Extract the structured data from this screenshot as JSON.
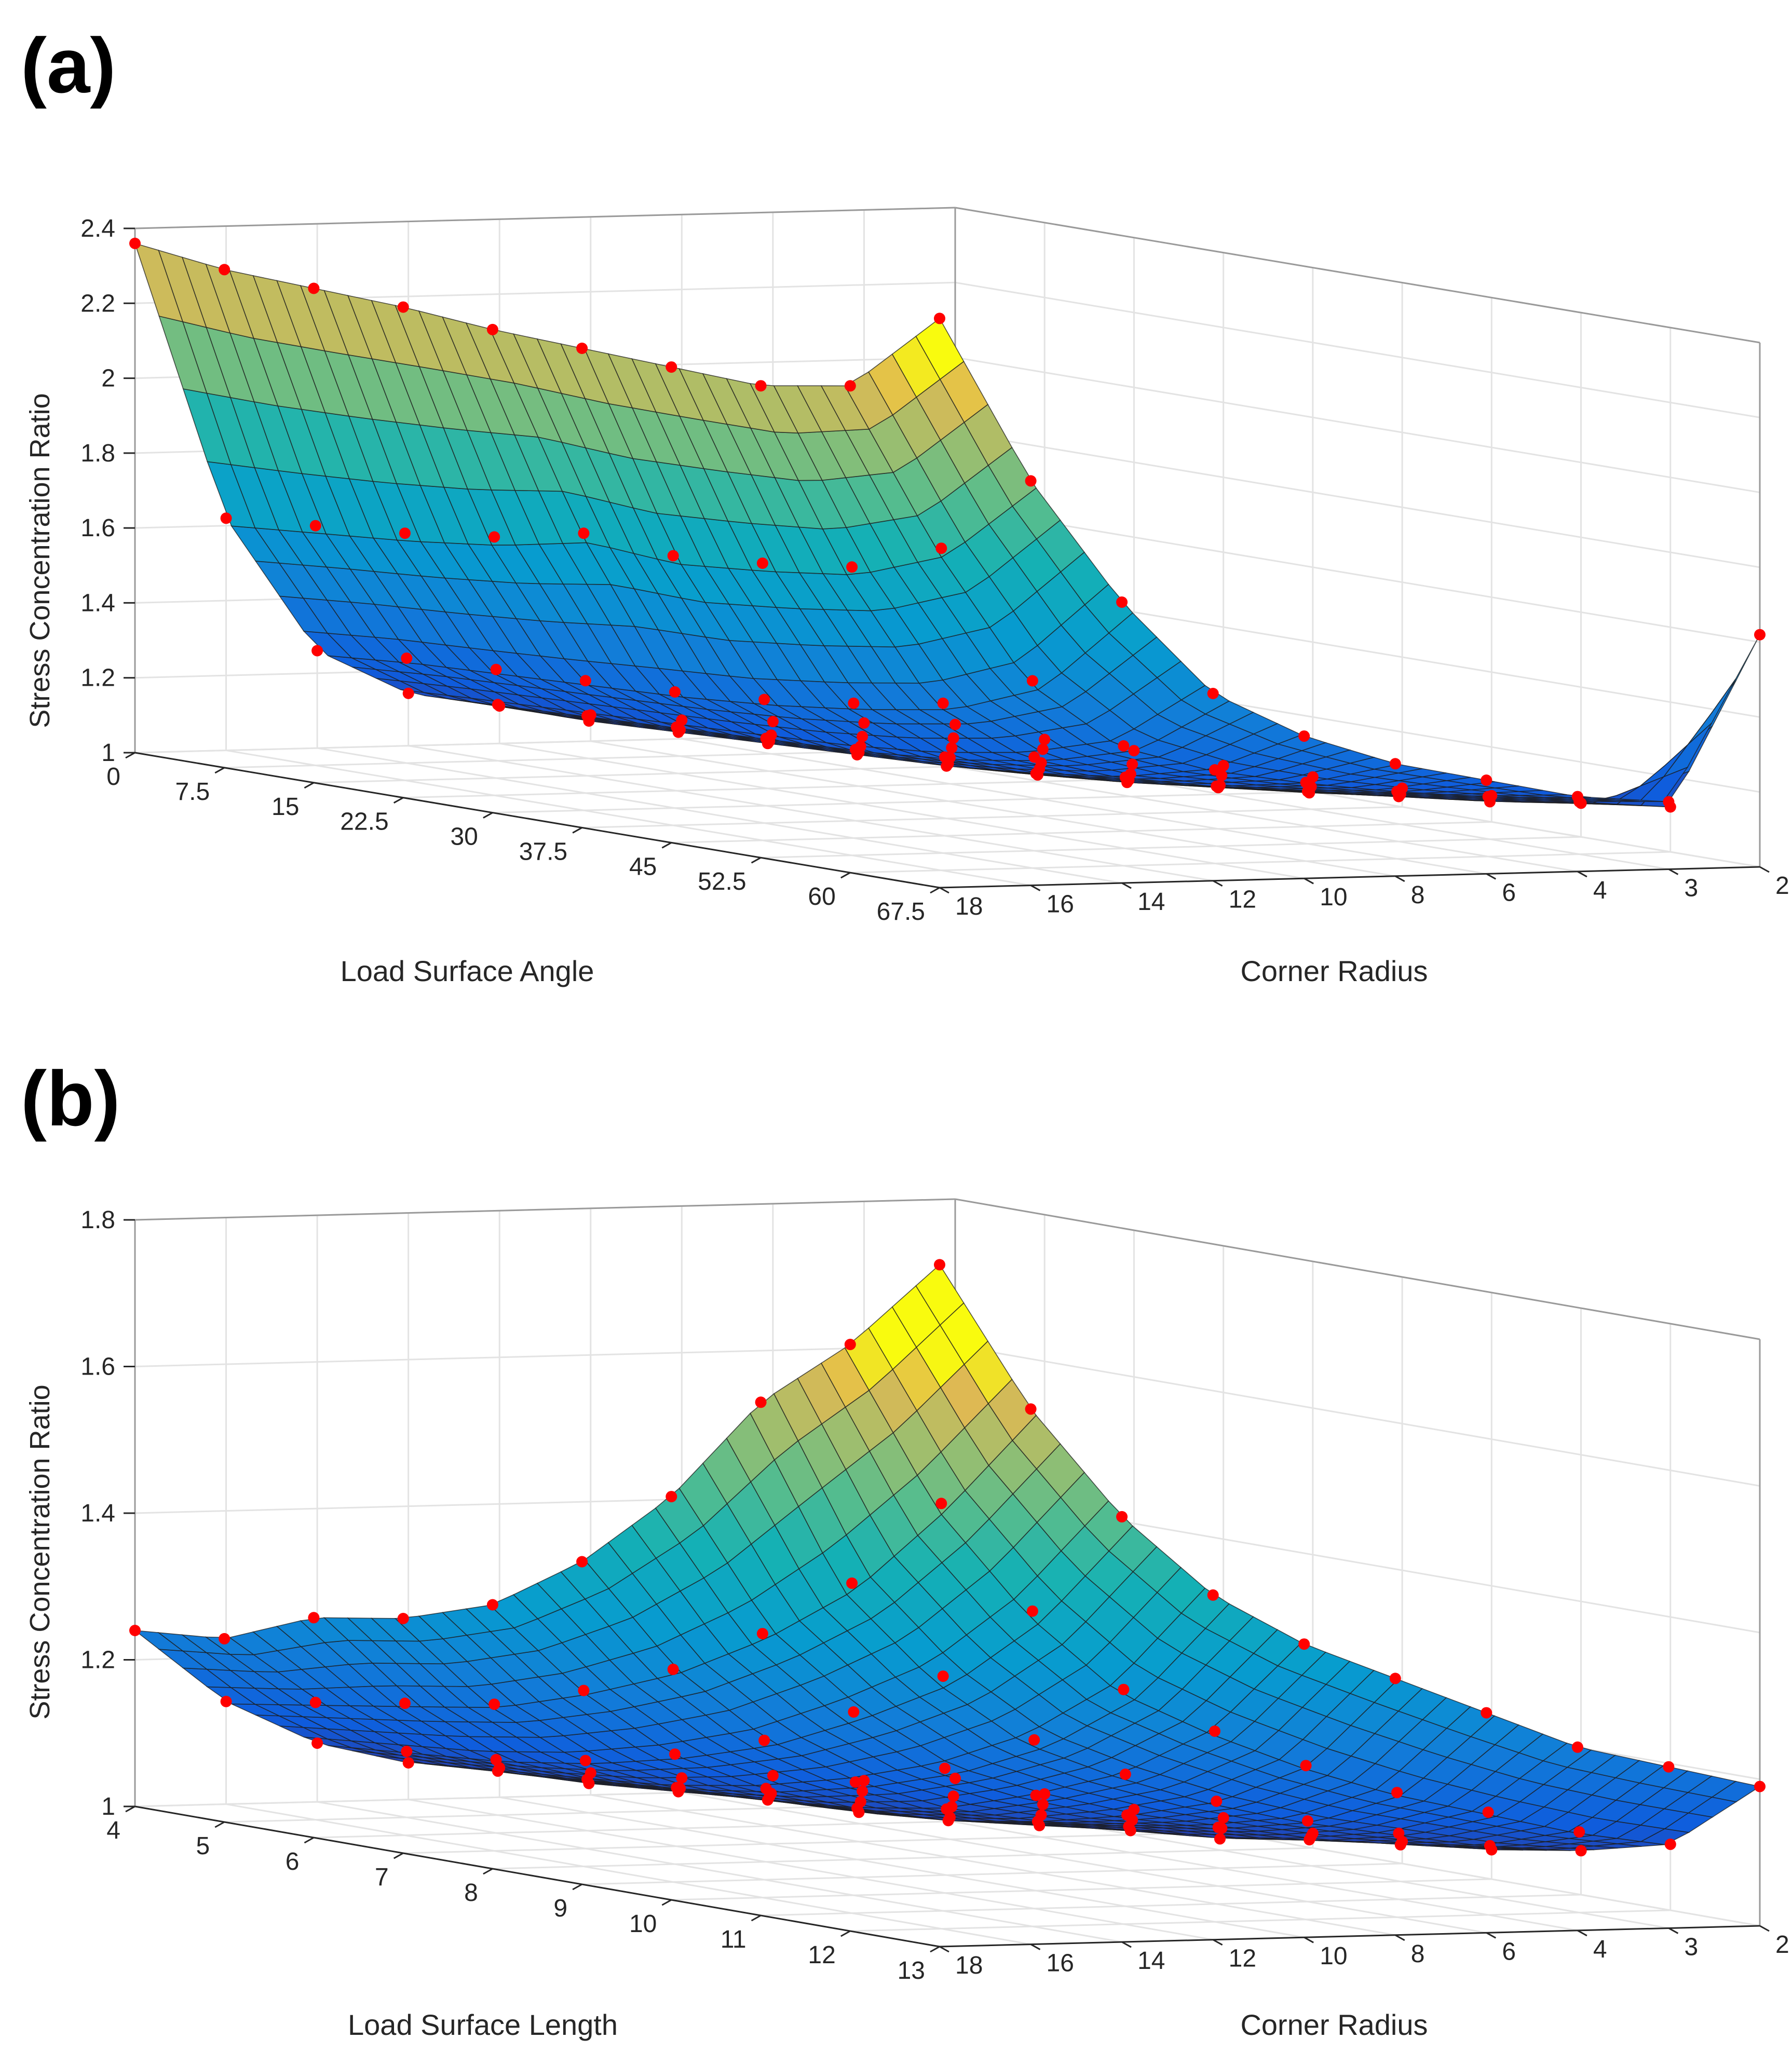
{
  "chart_data": [
    {
      "panel_label": "(a)",
      "type": "surface3d",
      "xlabel": "Load Surface Angle",
      "ylabel": "Corner Radius",
      "zlabel": "Stress Concentration Ratio",
      "x_ticks": [
        "0",
        "7.5",
        "15",
        "22.5",
        "30",
        "37.5",
        "45",
        "52.5",
        "60",
        "67.5"
      ],
      "y_ticks": [
        "2",
        "3",
        "4",
        "6",
        "8",
        "10",
        "12",
        "14",
        "16",
        "18"
      ],
      "z_ticks": [
        "1",
        "1.2",
        "1.4",
        "1.6",
        "1.8",
        "2",
        "2.2",
        "2.4"
      ],
      "zlim": [
        1,
        2.4
      ],
      "colormap": "parula",
      "grid": true,
      "marker_color": "#ff0000",
      "z_values": [
        [
          2.36,
          2.33,
          2.32,
          2.31,
          2.29,
          2.28,
          2.27,
          2.26,
          2.3,
          2.52
        ],
        [
          1.62,
          1.64,
          1.66,
          1.69,
          1.74,
          1.72,
          1.74,
          1.77,
          1.86,
          2.08
        ],
        [
          1.26,
          1.28,
          1.29,
          1.3,
          1.31,
          1.33,
          1.36,
          1.4,
          1.5,
          1.75
        ],
        [
          1.14,
          1.15,
          1.16,
          1.17,
          1.18,
          1.19,
          1.21,
          1.25,
          1.32,
          1.5
        ],
        [
          1.1,
          1.1,
          1.11,
          1.12,
          1.13,
          1.14,
          1.16,
          1.19,
          1.25,
          1.38
        ],
        [
          1.07,
          1.07,
          1.08,
          1.09,
          1.1,
          1.11,
          1.13,
          1.16,
          1.21,
          1.3
        ],
        [
          1.05,
          1.05,
          1.06,
          1.07,
          1.08,
          1.09,
          1.11,
          1.14,
          1.18,
          1.25
        ],
        [
          1.04,
          1.04,
          1.05,
          1.05,
          1.06,
          1.07,
          1.09,
          1.12,
          1.16,
          1.2
        ],
        [
          1.03,
          1.03,
          1.04,
          1.04,
          1.05,
          1.06,
          1.08,
          1.1,
          1.14,
          1.18
        ],
        [
          1.02,
          1.02,
          1.03,
          1.03,
          1.04,
          1.05,
          1.07,
          1.09,
          1.12,
          1.62
        ]
      ]
    },
    {
      "panel_label": "(b)",
      "type": "surface3d",
      "xlabel": "Load Surface Length",
      "ylabel": "Corner Radius",
      "zlabel": "Stress Concentration Ratio",
      "x_ticks": [
        "4",
        "5",
        "6",
        "7",
        "8",
        "9",
        "10",
        "11",
        "12",
        "13"
      ],
      "y_ticks": [
        "2",
        "3",
        "4",
        "6",
        "8",
        "10",
        "12",
        "14",
        "16",
        "18"
      ],
      "z_ticks": [
        "1",
        "1.2",
        "1.4",
        "1.6",
        "1.8"
      ],
      "zlim": [
        1,
        1.8
      ],
      "colormap": "parula",
      "grid": true,
      "marker_color": "#ff0000",
      "z_values": [
        [
          1.24,
          1.25,
          1.3,
          1.32,
          1.36,
          1.44,
          1.55,
          1.7,
          1.8,
          1.93
        ],
        [
          1.14,
          1.16,
          1.18,
          1.2,
          1.24,
          1.29,
          1.36,
          1.45,
          1.58,
          1.73
        ],
        [
          1.08,
          1.09,
          1.1,
          1.12,
          1.15,
          1.19,
          1.25,
          1.32,
          1.43,
          1.58
        ],
        [
          1.05,
          1.06,
          1.07,
          1.08,
          1.1,
          1.13,
          1.17,
          1.23,
          1.32,
          1.47
        ],
        [
          1.04,
          1.04,
          1.05,
          1.06,
          1.07,
          1.09,
          1.13,
          1.18,
          1.26,
          1.4
        ],
        [
          1.03,
          1.03,
          1.04,
          1.04,
          1.05,
          1.07,
          1.1,
          1.14,
          1.21,
          1.35
        ],
        [
          1.02,
          1.02,
          1.03,
          1.03,
          1.04,
          1.06,
          1.08,
          1.11,
          1.17,
          1.3
        ],
        [
          1.02,
          1.02,
          1.02,
          1.03,
          1.03,
          1.04,
          1.06,
          1.09,
          1.14,
          1.25
        ],
        [
          1.01,
          1.01,
          1.02,
          1.02,
          1.03,
          1.04,
          1.05,
          1.07,
          1.11,
          1.22
        ],
        [
          1.01,
          1.01,
          1.01,
          1.02,
          1.02,
          1.03,
          1.04,
          1.06,
          1.09,
          1.19
        ]
      ]
    }
  ]
}
